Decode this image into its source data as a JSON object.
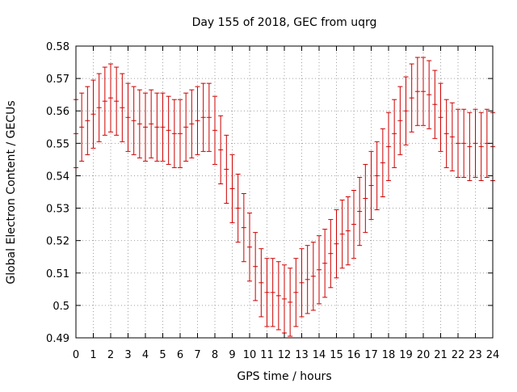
{
  "chart_data": {
    "type": "scatter",
    "title": "Day 155 of 2018, GEC from uqrg",
    "xlabel": "GPS time / hours",
    "ylabel": "Global Electron Content / GECUs",
    "xlim": [
      0,
      24
    ],
    "ylim": [
      0.49,
      0.58
    ],
    "x_ticks": [
      "0",
      "1",
      "2",
      "3",
      "4",
      "5",
      "6",
      "7",
      "8",
      "9",
      "10",
      "11",
      "12",
      "13",
      "14",
      "15",
      "16",
      "17",
      "18",
      "19",
      "20",
      "21",
      "22",
      "23",
      "24"
    ],
    "y_ticks": [
      "0.49",
      "0.5",
      "0.51",
      "0.52",
      "0.53",
      "0.54",
      "0.55",
      "0.56",
      "0.57",
      "0.58"
    ],
    "grid": true,
    "series_color": "#cc0000",
    "error_bars": true,
    "x": [
      0,
      0.333,
      0.667,
      1,
      1.333,
      1.667,
      2,
      2.333,
      2.667,
      3,
      3.333,
      3.667,
      4,
      4.333,
      4.667,
      5,
      5.333,
      5.667,
      6,
      6.333,
      6.667,
      7,
      7.333,
      7.667,
      8,
      8.333,
      8.667,
      9,
      9.333,
      9.667,
      10,
      10.333,
      10.667,
      11,
      11.333,
      11.667,
      12,
      12.333,
      12.667,
      13,
      13.333,
      13.667,
      14,
      14.333,
      14.667,
      15,
      15.333,
      15.667,
      16,
      16.333,
      16.667,
      17,
      17.333,
      17.667,
      18,
      18.333,
      18.667,
      19,
      19.333,
      19.667,
      20,
      20.333,
      20.667,
      21,
      21.333,
      21.667,
      22,
      22.333,
      22.667,
      23,
      23.333,
      23.667,
      24
    ],
    "y": [
      0.553,
      0.555,
      0.557,
      0.559,
      0.561,
      0.563,
      0.564,
      0.563,
      0.561,
      0.558,
      0.557,
      0.556,
      0.555,
      0.556,
      0.555,
      0.555,
      0.554,
      0.553,
      0.553,
      0.555,
      0.556,
      0.557,
      0.558,
      0.558,
      0.554,
      0.548,
      0.542,
      0.536,
      0.53,
      0.524,
      0.518,
      0.512,
      0.507,
      0.504,
      0.504,
      0.503,
      0.502,
      0.501,
      0.504,
      0.507,
      0.508,
      0.509,
      0.511,
      0.513,
      0.516,
      0.519,
      0.522,
      0.523,
      0.525,
      0.529,
      0.533,
      0.537,
      0.54,
      0.544,
      0.549,
      0.553,
      0.557,
      0.56,
      0.564,
      0.566,
      0.566,
      0.565,
      0.562,
      0.558,
      0.553,
      0.552,
      0.55,
      0.55,
      0.549,
      0.55,
      0.549,
      0.55,
      0.549
    ],
    "y_err": 0.0105
  }
}
